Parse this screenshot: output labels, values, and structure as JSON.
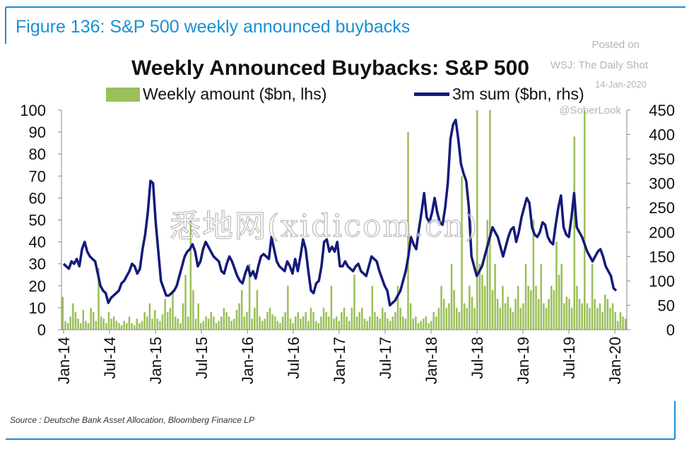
{
  "figure_title": "Figure 136: S&P 500 weekly announced buybacks",
  "source": "Source : Deutsche Bank Asset Allocation, Bloomberg Finance LP",
  "watermark": {
    "line1": "Posted on",
    "line2": "WSJ: The Daily Shot",
    "line3": "14-Jan-2020",
    "line4": "@SoberLook"
  },
  "overlay_text": "悉地网(xidicom.cn)",
  "colors": {
    "frame": "#1a8fd1",
    "bars": "#9bbf5a",
    "line": "#131a7a"
  },
  "chart_data": {
    "type": "bar",
    "title": "Weekly Announced Buybacks: S&P 500",
    "x_tick_labels": [
      "Jan-14",
      "Jul-14",
      "Jan-15",
      "Jul-15",
      "Jan-16",
      "Jul-16",
      "Jan-17",
      "Jul-17",
      "Jan-18",
      "Jul-18",
      "Jan-19",
      "Jul-19",
      "Jan-20"
    ],
    "y_left": {
      "min": 0,
      "max": 100,
      "ticks": [
        0,
        10,
        20,
        30,
        40,
        50,
        60,
        70,
        80,
        90,
        100
      ]
    },
    "y_right": {
      "min": 0,
      "max": 450,
      "ticks": [
        0,
        50,
        100,
        150,
        200,
        250,
        300,
        350,
        400,
        450
      ]
    },
    "grid": false,
    "legend_position": "top",
    "series": [
      {
        "name": "Weekly amount ($bn, lhs)",
        "type": "bar",
        "axis": "left",
        "values": [
          15,
          4,
          3,
          6,
          12,
          8,
          5,
          3,
          9,
          4,
          3,
          10,
          8,
          4,
          28,
          6,
          5,
          3,
          8,
          5,
          6,
          4,
          3,
          2,
          4,
          3,
          6,
          3,
          2,
          5,
          3,
          4,
          8,
          6,
          12,
          5,
          9,
          5,
          4,
          7,
          14,
          8,
          10,
          18,
          6,
          5,
          3,
          12,
          25,
          6,
          50,
          18,
          5,
          12,
          3,
          4,
          6,
          5,
          8,
          6,
          3,
          4,
          6,
          10,
          8,
          6,
          4,
          5,
          9,
          12,
          18,
          6,
          8,
          30,
          5,
          10,
          18,
          6,
          4,
          5,
          8,
          10,
          7,
          6,
          4,
          3,
          6,
          8,
          20,
          5,
          3,
          6,
          8,
          5,
          6,
          8,
          4,
          10,
          8,
          4,
          3,
          6,
          10,
          8,
          6,
          20,
          5,
          6,
          4,
          8,
          10,
          6,
          4,
          10,
          25,
          6,
          8,
          10,
          5,
          4,
          6,
          20,
          8,
          6,
          5,
          10,
          8,
          5,
          4,
          6,
          8,
          20,
          10,
          6,
          5,
          90,
          12,
          5,
          6,
          3,
          4,
          5,
          6,
          3,
          4,
          8,
          6,
          10,
          20,
          14,
          10,
          12,
          30,
          18,
          10,
          8,
          70,
          12,
          10,
          20,
          15,
          10,
          100,
          30,
          25,
          20,
          50,
          100,
          18,
          30,
          14,
          10,
          20,
          12,
          15,
          10,
          8,
          14,
          20,
          10,
          12,
          30,
          20,
          18,
          50,
          20,
          14,
          30,
          12,
          10,
          14,
          20,
          18,
          40,
          25,
          30,
          12,
          15,
          14,
          10,
          88,
          20,
          14,
          12,
          100,
          12,
          10,
          30,
          14,
          10,
          12,
          8,
          16,
          14,
          10,
          12,
          8,
          4,
          8,
          6,
          5
        ]
      },
      {
        "name": "3m sum ($bn, rhs)",
        "type": "line",
        "axis": "right",
        "values": [
          135,
          130,
          125,
          140,
          135,
          145,
          130,
          165,
          180,
          160,
          150,
          145,
          140,
          115,
          90,
          80,
          75,
          55,
          65,
          70,
          75,
          80,
          95,
          100,
          110,
          120,
          135,
          130,
          115,
          125,
          165,
          195,
          240,
          305,
          300,
          220,
          160,
          100,
          85,
          70,
          70,
          75,
          80,
          90,
          110,
          130,
          150,
          160,
          165,
          175,
          160,
          130,
          140,
          165,
          180,
          170,
          160,
          150,
          145,
          140,
          120,
          115,
          135,
          150,
          140,
          125,
          110,
          100,
          95,
          115,
          130,
          110,
          120,
          105,
          130,
          150,
          155,
          150,
          145,
          190,
          165,
          140,
          130,
          125,
          120,
          140,
          130,
          115,
          145,
          120,
          150,
          185,
          165,
          120,
          80,
          75,
          95,
          100,
          130,
          180,
          185,
          160,
          170,
          160,
          180,
          130,
          130,
          140,
          130,
          125,
          120,
          130,
          135,
          120,
          115,
          110,
          130,
          150,
          145,
          140,
          120,
          105,
          90,
          80,
          50,
          55,
          60,
          70,
          80,
          100,
          120,
          150,
          190,
          175,
          165,
          205,
          240,
          280,
          230,
          220,
          240,
          270,
          240,
          220,
          215,
          250,
          300,
          390,
          420,
          430,
          390,
          340,
          320,
          305,
          250,
          150,
          130,
          110,
          120,
          130,
          150,
          170,
          190,
          210,
          200,
          190,
          170,
          150,
          170,
          190,
          205,
          210,
          180,
          200,
          230,
          250,
          270,
          260,
          210,
          195,
          190,
          200,
          220,
          215,
          190,
          180,
          175,
          215,
          250,
          275,
          210,
          195,
          190,
          230,
          280,
          210,
          200,
          190,
          175,
          160,
          150,
          140,
          150,
          160,
          165,
          150,
          130,
          120,
          110,
          85,
          80
        ]
      }
    ]
  }
}
